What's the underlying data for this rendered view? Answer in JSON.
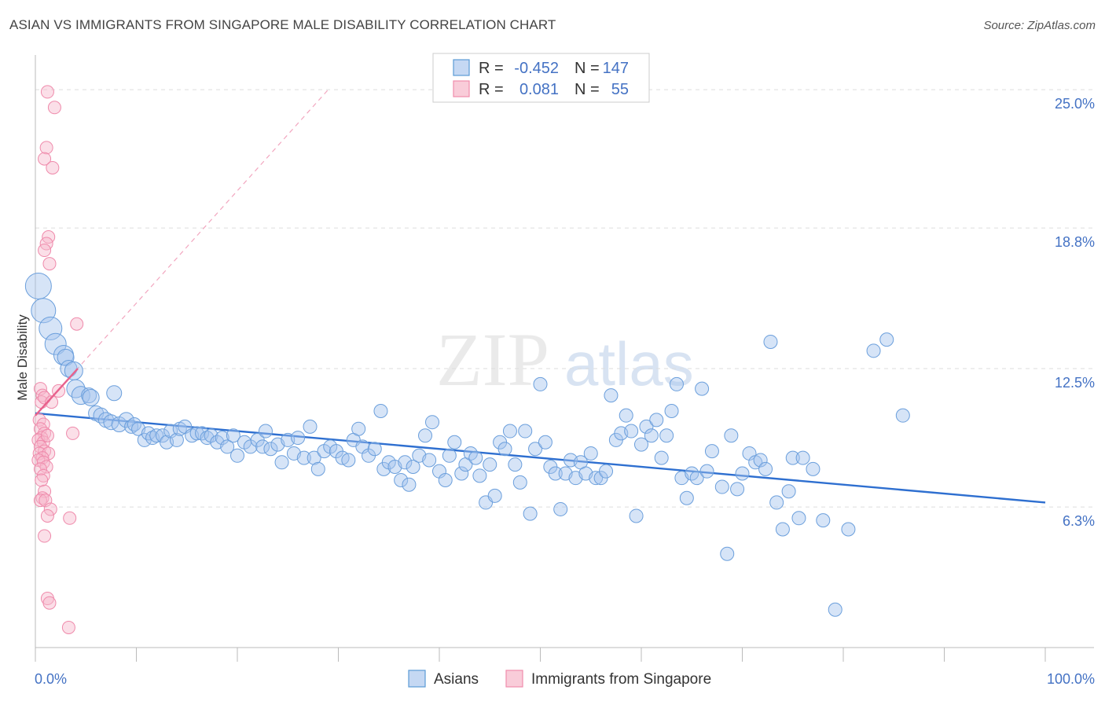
{
  "header": {
    "title": "ASIAN VS IMMIGRANTS FROM SINGAPORE MALE DISABILITY CORRELATION CHART",
    "source": "Source: ZipAtlas.com"
  },
  "watermark": {
    "zip": "ZIP",
    "atlas": "atlas"
  },
  "legend": {
    "rows": [
      {
        "r_label": "R = ",
        "r_value": "-0.452",
        "n_label": "N = ",
        "n_value": "147",
        "color": "#5b9bd5"
      },
      {
        "r_label": "R = ",
        "r_value": "0.081",
        "n_label": "N = ",
        "n_value": "55",
        "color": "#f08cac"
      }
    ]
  },
  "bottom_legend": [
    "Asians",
    "Immigrants from Singapore"
  ],
  "chart_data": {
    "type": "scatter",
    "title": "ASIAN VS IMMIGRANTS FROM SINGAPORE MALE DISABILITY CORRELATION CHART",
    "xlabel": "",
    "ylabel": "Male Disability",
    "xlim": [
      0,
      100
    ],
    "ylim": [
      0,
      26.2
    ],
    "x_tick_labels": [
      "0.0%",
      "100.0%"
    ],
    "y_ticks": [
      6.3,
      12.5,
      18.8,
      25.0
    ],
    "y_tick_labels": [
      "6.3%",
      "12.5%",
      "18.8%",
      "25.0%"
    ],
    "grid": "horizontal dashed",
    "colors": {
      "asians": "#5b9bd5",
      "asians_line": "#2e6fd0",
      "singapore": "#f08cac",
      "singapore_line": "#e8618c"
    },
    "series": [
      {
        "name": "Asians",
        "regression": {
          "x": [
            0,
            100
          ],
          "y": [
            10.5,
            6.5
          ]
        },
        "points": [
          [
            0.3,
            16.2,
            15
          ],
          [
            0.8,
            15.1,
            14
          ],
          [
            1.5,
            14.3,
            13
          ],
          [
            2.0,
            13.6,
            12
          ],
          [
            2.8,
            13.1,
            11
          ],
          [
            3.0,
            13.0,
            9
          ],
          [
            3.3,
            12.5,
            9
          ],
          [
            3.8,
            12.4,
            10
          ],
          [
            4.0,
            11.6,
            10
          ],
          [
            4.5,
            11.3,
            10
          ],
          [
            5.3,
            11.3,
            8
          ],
          [
            5.5,
            11.2,
            9
          ],
          [
            7.8,
            11.4,
            8
          ],
          [
            6.0,
            10.5,
            8
          ],
          [
            6.5,
            10.4,
            8
          ],
          [
            7.0,
            10.2,
            8
          ],
          [
            7.5,
            10.1,
            8
          ],
          [
            8.3,
            10.0,
            8
          ],
          [
            9.0,
            10.2,
            8
          ],
          [
            9.5,
            9.9,
            7
          ],
          [
            9.8,
            10.0,
            7
          ],
          [
            10.2,
            9.8,
            7
          ],
          [
            10.8,
            9.3,
            7
          ],
          [
            11.2,
            9.6,
            7
          ],
          [
            11.6,
            9.4,
            7
          ],
          [
            12.0,
            9.5,
            7
          ],
          [
            12.6,
            9.5,
            7
          ],
          [
            13.0,
            9.2,
            7
          ],
          [
            13.4,
            9.7,
            7
          ],
          [
            14.0,
            9.3,
            7
          ],
          [
            14.3,
            9.8,
            7
          ],
          [
            14.8,
            9.9,
            7
          ],
          [
            15.5,
            9.5,
            7
          ],
          [
            16.0,
            9.6,
            7
          ],
          [
            16.5,
            9.6,
            7
          ],
          [
            17.0,
            9.4,
            7
          ],
          [
            17.4,
            9.5,
            7
          ],
          [
            18.0,
            9.2,
            7
          ],
          [
            18.5,
            9.4,
            7
          ],
          [
            19.0,
            9.0,
            7
          ],
          [
            19.6,
            9.5,
            7
          ],
          [
            20.0,
            8.6,
            7
          ],
          [
            20.7,
            9.2,
            7
          ],
          [
            21.3,
            9.0,
            7
          ],
          [
            22.0,
            9.3,
            7
          ],
          [
            22.5,
            9.0,
            7
          ],
          [
            22.8,
            9.7,
            7
          ],
          [
            23.3,
            8.9,
            7
          ],
          [
            24.0,
            9.1,
            7
          ],
          [
            24.4,
            8.3,
            7
          ],
          [
            25.0,
            9.3,
            7
          ],
          [
            25.6,
            8.7,
            7
          ],
          [
            26.0,
            9.4,
            7
          ],
          [
            26.6,
            8.5,
            7
          ],
          [
            27.2,
            9.9,
            7
          ],
          [
            27.6,
            8.5,
            7
          ],
          [
            28.0,
            8.0,
            7
          ],
          [
            28.6,
            8.8,
            7
          ],
          [
            29.2,
            9.0,
            7
          ],
          [
            29.8,
            8.8,
            7
          ],
          [
            30.4,
            8.5,
            7
          ],
          [
            31.0,
            8.4,
            7
          ],
          [
            31.5,
            9.3,
            7
          ],
          [
            32.0,
            9.8,
            7
          ],
          [
            32.4,
            9.0,
            7
          ],
          [
            33.0,
            8.6,
            7
          ],
          [
            33.6,
            8.9,
            7
          ],
          [
            34.2,
            10.6,
            7
          ],
          [
            34.5,
            8.0,
            7
          ],
          [
            35.0,
            8.3,
            7
          ],
          [
            35.6,
            8.1,
            7
          ],
          [
            36.2,
            7.5,
            7
          ],
          [
            36.6,
            8.3,
            7
          ],
          [
            37.0,
            7.3,
            7
          ],
          [
            37.4,
            8.1,
            7
          ],
          [
            38.0,
            8.6,
            7
          ],
          [
            38.6,
            9.5,
            7
          ],
          [
            39.0,
            8.4,
            7
          ],
          [
            39.3,
            10.1,
            7
          ],
          [
            40.0,
            7.9,
            7
          ],
          [
            40.6,
            7.5,
            7
          ],
          [
            41.0,
            8.6,
            7
          ],
          [
            41.5,
            9.2,
            7
          ],
          [
            42.2,
            7.8,
            7
          ],
          [
            42.6,
            8.2,
            7
          ],
          [
            43.1,
            8.7,
            7
          ],
          [
            43.6,
            8.5,
            7
          ],
          [
            44.0,
            7.7,
            7
          ],
          [
            44.6,
            6.5,
            7
          ],
          [
            45.0,
            8.2,
            7
          ],
          [
            45.5,
            6.8,
            7
          ],
          [
            46.0,
            9.2,
            7
          ],
          [
            46.5,
            8.9,
            7
          ],
          [
            47.0,
            9.7,
            7
          ],
          [
            47.5,
            8.2,
            7
          ],
          [
            48.0,
            7.4,
            7
          ],
          [
            48.5,
            9.7,
            7
          ],
          [
            49.0,
            6.0,
            7
          ],
          [
            49.5,
            8.9,
            7
          ],
          [
            50.0,
            11.8,
            7
          ],
          [
            50.5,
            9.2,
            7
          ],
          [
            51.0,
            8.1,
            7
          ],
          [
            51.5,
            7.8,
            7
          ],
          [
            52.0,
            6.2,
            7
          ],
          [
            52.5,
            7.8,
            7
          ],
          [
            53.0,
            8.4,
            7
          ],
          [
            53.5,
            7.6,
            7
          ],
          [
            54.0,
            8.3,
            7
          ],
          [
            54.5,
            7.8,
            7
          ],
          [
            55.0,
            8.7,
            7
          ],
          [
            55.5,
            7.6,
            7
          ],
          [
            56.0,
            7.6,
            7
          ],
          [
            56.5,
            7.9,
            7
          ],
          [
            57.0,
            11.3,
            7
          ],
          [
            57.5,
            9.3,
            7
          ],
          [
            58.0,
            9.6,
            7
          ],
          [
            58.5,
            10.4,
            7
          ],
          [
            59.0,
            9.7,
            7
          ],
          [
            59.5,
            5.9,
            7
          ],
          [
            60.0,
            9.1,
            7
          ],
          [
            60.5,
            9.9,
            7
          ],
          [
            61.0,
            9.5,
            7
          ],
          [
            61.5,
            10.2,
            7
          ],
          [
            62.0,
            8.5,
            7
          ],
          [
            62.5,
            9.5,
            7
          ],
          [
            63.0,
            10.6,
            7
          ],
          [
            63.5,
            11.8,
            7
          ],
          [
            64.0,
            7.6,
            7
          ],
          [
            64.5,
            6.7,
            7
          ],
          [
            65.0,
            7.8,
            7
          ],
          [
            65.5,
            7.6,
            7
          ],
          [
            66.0,
            11.6,
            7
          ],
          [
            66.5,
            7.9,
            7
          ],
          [
            67.0,
            8.8,
            7
          ],
          [
            68.0,
            7.2,
            7
          ],
          [
            68.5,
            4.2,
            7
          ],
          [
            68.9,
            9.5,
            7
          ],
          [
            69.5,
            7.1,
            7
          ],
          [
            70.0,
            7.8,
            7
          ],
          [
            70.7,
            8.7,
            7
          ],
          [
            71.3,
            8.3,
            7
          ],
          [
            71.8,
            8.4,
            7
          ],
          [
            72.3,
            8.0,
            7
          ],
          [
            72.8,
            13.7,
            7
          ],
          [
            73.4,
            6.5,
            7
          ],
          [
            74.0,
            5.3,
            7
          ],
          [
            74.6,
            7.0,
            7
          ],
          [
            75.0,
            8.5,
            7
          ],
          [
            75.6,
            5.8,
            7
          ],
          [
            76.0,
            8.5,
            7
          ],
          [
            77.0,
            8.0,
            7
          ],
          [
            78.0,
            5.7,
            7
          ],
          [
            79.2,
            1.7,
            7
          ],
          [
            80.5,
            5.3,
            7
          ],
          [
            83.0,
            13.3,
            7
          ],
          [
            84.3,
            13.8,
            7
          ],
          [
            85.9,
            10.4,
            7
          ]
        ]
      },
      {
        "name": "Immigrants from Singapore",
        "regression": {
          "x": [
            0,
            4.2
          ],
          "y": [
            10.4,
            12.5
          ]
        },
        "regression_extended": {
          "x": [
            0,
            29.0
          ],
          "y": [
            10.4,
            25.0
          ]
        },
        "points": [
          [
            1.2,
            24.9,
            7
          ],
          [
            1.9,
            24.2,
            7
          ],
          [
            1.1,
            22.4,
            7
          ],
          [
            0.9,
            21.9,
            7
          ],
          [
            1.7,
            21.5,
            7
          ],
          [
            1.3,
            18.4,
            7
          ],
          [
            1.1,
            18.1,
            7
          ],
          [
            0.9,
            17.8,
            7
          ],
          [
            1.4,
            17.2,
            7
          ],
          [
            4.1,
            14.5,
            7
          ],
          [
            0.5,
            11.6,
            7
          ],
          [
            0.7,
            11.3,
            7
          ],
          [
            0.6,
            11.0,
            7
          ],
          [
            0.9,
            11.2,
            7
          ],
          [
            1.6,
            11.0,
            7
          ],
          [
            2.3,
            11.5,
            7
          ],
          [
            0.4,
            10.2,
            7
          ],
          [
            0.8,
            10.0,
            7
          ],
          [
            0.5,
            9.8,
            7
          ],
          [
            0.9,
            9.6,
            7
          ],
          [
            0.6,
            9.4,
            7
          ],
          [
            0.3,
            9.3,
            7
          ],
          [
            0.8,
            9.2,
            7
          ],
          [
            1.2,
            9.5,
            7
          ],
          [
            3.7,
            9.6,
            7
          ],
          [
            0.5,
            9.0,
            7
          ],
          [
            0.9,
            8.8,
            7
          ],
          [
            0.4,
            8.7,
            7
          ],
          [
            1.3,
            8.7,
            7
          ],
          [
            0.7,
            8.5,
            7
          ],
          [
            0.3,
            8.4,
            7
          ],
          [
            0.8,
            8.3,
            7
          ],
          [
            1.1,
            8.1,
            7
          ],
          [
            0.5,
            8.0,
            7
          ],
          [
            0.8,
            7.7,
            7
          ],
          [
            0.6,
            7.5,
            7
          ],
          [
            0.9,
            7.0,
            7
          ],
          [
            0.7,
            6.7,
            7
          ],
          [
            0.5,
            6.6,
            7
          ],
          [
            1.0,
            6.6,
            7
          ],
          [
            1.5,
            6.2,
            7
          ],
          [
            1.2,
            5.9,
            7
          ],
          [
            3.4,
            5.8,
            7
          ],
          [
            0.9,
            5.0,
            7
          ],
          [
            1.2,
            2.2,
            7
          ],
          [
            1.4,
            2.0,
            7
          ],
          [
            3.3,
            0.9,
            7
          ]
        ]
      }
    ]
  }
}
